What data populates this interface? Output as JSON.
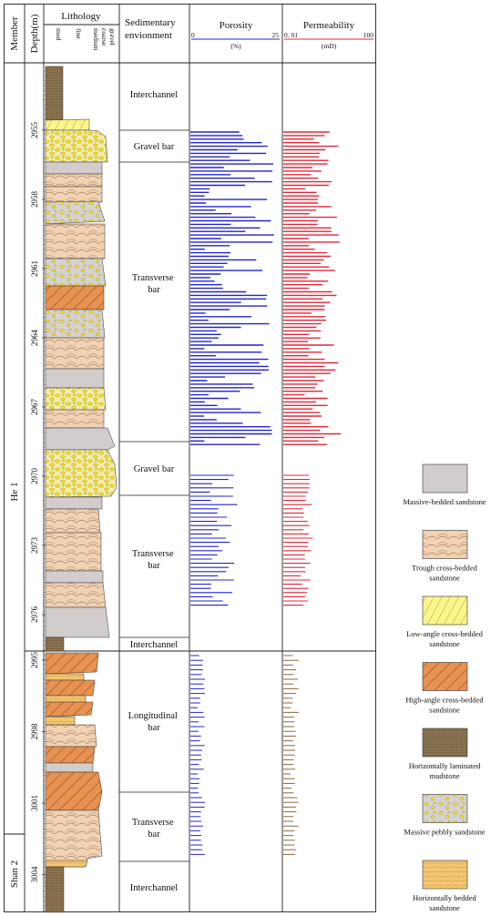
{
  "headers": {
    "member": "Member",
    "depth": "Depth(m)",
    "lithology": "Lithology",
    "grain_sizes": [
      "mud",
      "fine",
      "medium",
      "coarse",
      "gravel"
    ],
    "environment_lines": [
      "Sedimentary",
      "envionment"
    ],
    "porosity": "Porosity",
    "porosity_min": "0",
    "porosity_max": "25",
    "porosity_unit": "(%)",
    "permeability": "Permeability",
    "permeability_min": "0. 01",
    "permeability_max": "100",
    "permeability_unit": "(mD)"
  },
  "members": [
    "He 1",
    "Shan 2"
  ],
  "depth_ticks_upper": [
    "2955",
    "2958",
    "2961",
    "2964",
    "2967",
    "2970",
    "2973",
    "2976"
  ],
  "depth_ticks_lower": [
    "2995",
    "2998",
    "3001",
    "3004"
  ],
  "environments": [
    {
      "lines": [
        "Interchannel"
      ]
    },
    {
      "lines": [
        "Gravel bar"
      ]
    },
    {
      "lines": [
        "Transverse",
        "bar"
      ]
    },
    {
      "lines": [
        "Gravel bar"
      ]
    },
    {
      "lines": [
        "Transverse",
        "bar"
      ]
    },
    {
      "lines": [
        "Interchannel"
      ]
    },
    {
      "lines": [
        "Longitudinal",
        "bar"
      ]
    },
    {
      "lines": [
        "Transverse",
        "bar"
      ]
    },
    {
      "lines": [
        "Interchannel"
      ]
    }
  ],
  "legend": [
    {
      "pattern": "massive",
      "lines": [
        "Massive-bedded sandstone"
      ]
    },
    {
      "pattern": "trough",
      "lines": [
        "Trough cross-bedded",
        "sandstone"
      ]
    },
    {
      "pattern": "lowangle",
      "lines": [
        "Low-angle cross-bedded",
        "sandstone"
      ]
    },
    {
      "pattern": "highangle",
      "lines": [
        "High-angle cross-bedded",
        "sandstone"
      ]
    },
    {
      "pattern": "mud",
      "lines": [
        "Horizontally laminated",
        "mudstone"
      ]
    },
    {
      "pattern": "pebbly",
      "lines": [
        "Massive pebbly sandstone"
      ]
    },
    {
      "pattern": "horizontal",
      "lines": [
        "Horizontally bedded",
        "sandstone"
      ]
    }
  ],
  "colors": {
    "porosity": "#2424c8",
    "permeability": "#e0283a",
    "permeability_lower": "#8a6a40",
    "massive": "#d2cccc",
    "trough": "#f2d2b2",
    "lowangle": "#fdf58a",
    "highangle": "#e89150",
    "mud": "#8c7550",
    "pebbly": "#d5d2d2",
    "horizontal": "#f6c772",
    "pebble": "#f5e21e"
  }
}
